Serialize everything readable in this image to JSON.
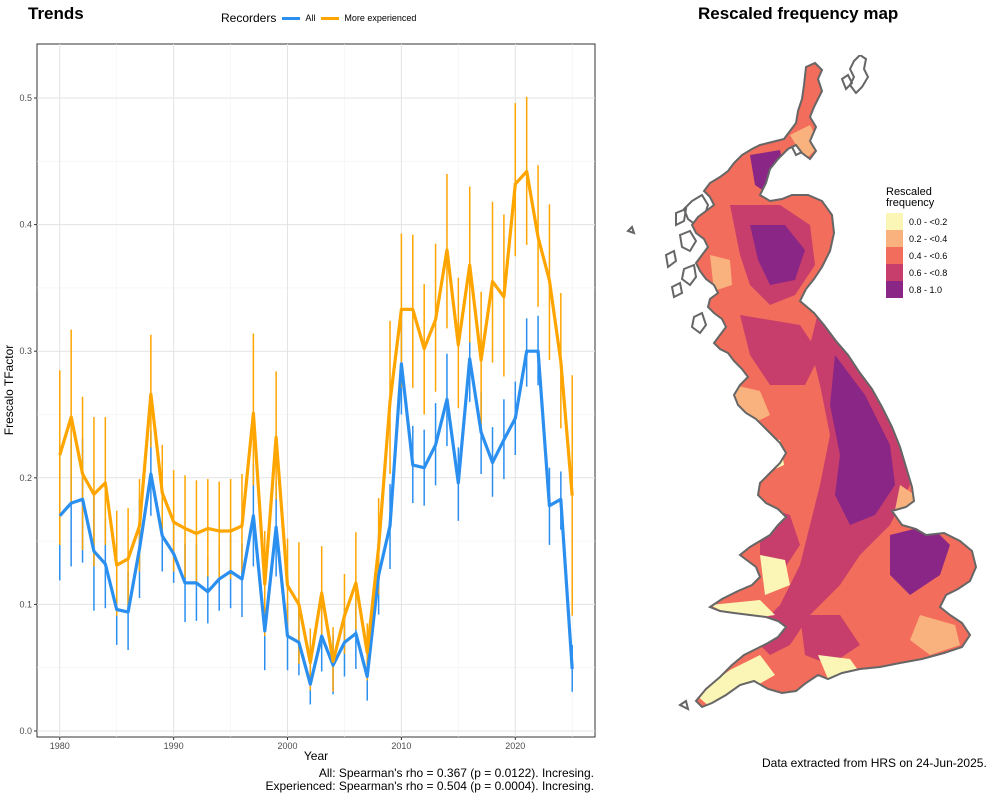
{
  "titles": {
    "left": "Trends",
    "right": "Rescaled frequency map"
  },
  "legend": {
    "title": "Recorders",
    "items": [
      {
        "label": "All",
        "color": "#2b8ff0"
      },
      {
        "label": "More experienced",
        "color": "#ffa500"
      }
    ]
  },
  "stats": {
    "line1": "All: Spearman's rho = 0.367 (p = 0.0122). Incresing.",
    "line2": "Experienced: Spearman's rho = 0.504 (p = 0.0004). Incresing."
  },
  "footnote": "Data extracted from HRS on 24-Jun-2025.",
  "map_legend": {
    "title_line1": "Rescaled",
    "title_line2": "frequency",
    "items": [
      {
        "label": "0.0 - <0.2",
        "color": "#fcf6b6"
      },
      {
        "label": "0.2 - <0.4",
        "color": "#f9b27d"
      },
      {
        "label": "0.4 - <0.6",
        "color": "#f26d5b"
      },
      {
        "label": "0.6 - <0.8",
        "color": "#c73e6c"
      },
      {
        "label": "0.8 - 1.0",
        "color": "#8a2786"
      }
    ]
  },
  "chart_data": {
    "type": "line",
    "xlabel": "Year",
    "ylabel": "Frescalo TFactor",
    "xlim": [
      1978,
      2027
    ],
    "ylim": [
      0,
      0.5
    ],
    "xticks": [
      1980,
      1990,
      2000,
      2010,
      2020
    ],
    "yticks": [
      0.0,
      0.1,
      0.2,
      0.3,
      0.4,
      0.5
    ],
    "grid": true,
    "legend_position": "top",
    "x": [
      1980,
      1981,
      1982,
      1983,
      1984,
      1985,
      1986,
      1987,
      1988,
      1989,
      1990,
      1991,
      1992,
      1993,
      1994,
      1995,
      1996,
      1997,
      1998,
      1999,
      2000,
      2001,
      2002,
      2003,
      2004,
      2005,
      2006,
      2007,
      2008,
      2009,
      2010,
      2011,
      2012,
      2013,
      2014,
      2015,
      2016,
      2017,
      2018,
      2019,
      2020,
      2021,
      2022,
      2023,
      2024,
      2025
    ],
    "series": [
      {
        "name": "All",
        "color": "#2b8ff0",
        "values": [
          0.17,
          0.18,
          0.183,
          0.142,
          0.132,
          0.096,
          0.094,
          0.144,
          0.203,
          0.154,
          0.14,
          0.117,
          0.117,
          0.11,
          0.12,
          0.126,
          0.12,
          0.17,
          0.079,
          0.161,
          0.075,
          0.07,
          0.037,
          0.075,
          0.052,
          0.07,
          0.077,
          0.043,
          0.123,
          0.162,
          0.29,
          0.21,
          0.208,
          0.226,
          0.262,
          0.196,
          0.294,
          0.236,
          0.212,
          0.23,
          0.247,
          0.3,
          0.3,
          0.178,
          0.183,
          0.049
        ],
        "lower": [
          0.119,
          0.13,
          0.133,
          0.095,
          0.097,
          0.068,
          0.064,
          0.105,
          0.17,
          0.126,
          0.117,
          0.086,
          0.087,
          0.085,
          0.095,
          0.097,
          0.09,
          0.13,
          0.048,
          0.122,
          0.048,
          0.044,
          0.021,
          0.047,
          0.029,
          0.043,
          0.049,
          0.024,
          0.092,
          0.128,
          0.25,
          0.18,
          0.178,
          0.194,
          0.225,
          0.166,
          0.26,
          0.203,
          0.185,
          0.199,
          0.218,
          0.272,
          0.273,
          0.147,
          0.159,
          0.031
        ],
        "upper": [
          0.223,
          0.231,
          0.231,
          0.189,
          0.168,
          0.125,
          0.126,
          0.183,
          0.237,
          0.183,
          0.165,
          0.148,
          0.148,
          0.137,
          0.146,
          0.155,
          0.148,
          0.211,
          0.107,
          0.197,
          0.101,
          0.096,
          0.055,
          0.102,
          0.076,
          0.097,
          0.106,
          0.063,
          0.156,
          0.195,
          0.33,
          0.241,
          0.238,
          0.259,
          0.298,
          0.224,
          0.329,
          0.268,
          0.24,
          0.262,
          0.276,
          0.326,
          0.328,
          0.208,
          0.205,
          0.068
        ]
      },
      {
        "name": "More experienced",
        "color": "#ffa500",
        "values": [
          0.218,
          0.248,
          0.203,
          0.187,
          0.196,
          0.131,
          0.136,
          0.162,
          0.266,
          0.188,
          0.165,
          0.16,
          0.156,
          0.16,
          0.158,
          0.158,
          0.162,
          0.251,
          0.116,
          0.232,
          0.115,
          0.1,
          0.054,
          0.109,
          0.055,
          0.091,
          0.117,
          0.062,
          0.145,
          0.26,
          0.333,
          0.333,
          0.302,
          0.325,
          0.38,
          0.305,
          0.368,
          0.293,
          0.355,
          0.343,
          0.432,
          0.442,
          0.39,
          0.356,
          0.292,
          0.186
        ],
        "lower": [
          0.147,
          0.181,
          0.143,
          0.13,
          0.147,
          0.091,
          0.098,
          0.126,
          0.224,
          0.155,
          0.126,
          0.121,
          0.118,
          0.122,
          0.121,
          0.12,
          0.124,
          0.194,
          0.075,
          0.183,
          0.081,
          0.053,
          0.032,
          0.072,
          0.031,
          0.061,
          0.08,
          0.04,
          0.108,
          0.203,
          0.271,
          0.271,
          0.25,
          0.268,
          0.318,
          0.255,
          0.307,
          0.242,
          0.291,
          0.28,
          0.375,
          0.384,
          0.335,
          0.293,
          0.239,
          0.091
        ],
        "upper": [
          0.285,
          0.317,
          0.264,
          0.248,
          0.248,
          0.174,
          0.176,
          0.199,
          0.313,
          0.226,
          0.206,
          0.202,
          0.198,
          0.199,
          0.197,
          0.199,
          0.203,
          0.314,
          0.158,
          0.284,
          0.152,
          0.149,
          0.081,
          0.146,
          0.082,
          0.124,
          0.157,
          0.085,
          0.184,
          0.324,
          0.393,
          0.392,
          0.353,
          0.385,
          0.44,
          0.358,
          0.43,
          0.347,
          0.418,
          0.408,
          0.496,
          0.501,
          0.447,
          0.416,
          0.346,
          0.281
        ]
      }
    ]
  }
}
